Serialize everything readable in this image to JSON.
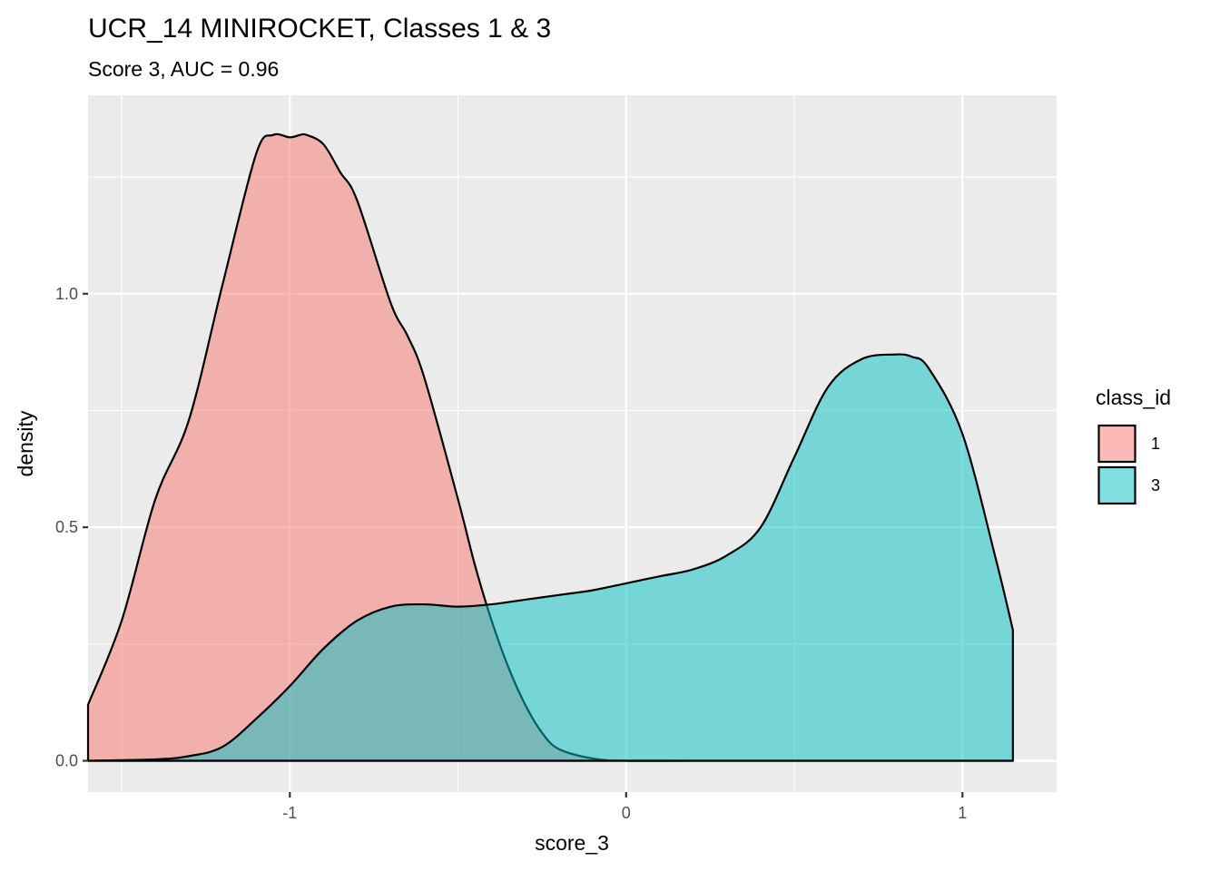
{
  "chart_data": {
    "type": "area",
    "subtype": "density",
    "title": "UCR_14 MINIROCKET, Classes 1 & 3",
    "subtitle": "Score 3, AUC = 0.96",
    "xlabel": "score_3",
    "ylabel": "density",
    "xlim": [
      -1.6,
      1.28
    ],
    "ylim": [
      -0.067,
      1.425
    ],
    "x_ticks": [
      -1,
      0,
      1
    ],
    "x_tick_labels": [
      "-1",
      "0",
      "1"
    ],
    "y_ticks": [
      0.0,
      0.5,
      1.0
    ],
    "y_tick_labels": [
      "0.0",
      "0.5",
      "1.0"
    ],
    "grid": true,
    "legend": {
      "title": "class_id",
      "position": "right"
    },
    "series": [
      {
        "name": "1",
        "color": "#F8766D",
        "fill_opacity": 0.5,
        "x": [
          -1.6,
          -1.5,
          -1.4,
          -1.3,
          -1.2,
          -1.1,
          -1.05,
          -1.0,
          -0.97,
          -0.95,
          -0.9,
          -0.85,
          -0.8,
          -0.7,
          -0.65,
          -0.6,
          -0.5,
          -0.45,
          -0.4,
          -0.35,
          -0.3,
          -0.25,
          -0.2,
          -0.1,
          0.0,
          0.2,
          0.5,
          1.15
        ],
        "y": [
          0.12,
          0.3,
          0.56,
          0.73,
          1.02,
          1.3,
          1.34,
          1.335,
          1.34,
          1.34,
          1.32,
          1.26,
          1.2,
          0.98,
          0.91,
          0.82,
          0.56,
          0.42,
          0.3,
          0.2,
          0.12,
          0.06,
          0.025,
          0.005,
          0.0,
          0.0,
          0.0,
          0.0
        ]
      },
      {
        "name": "3",
        "color": "#00BFC4",
        "fill_opacity": 0.5,
        "x": [
          -1.6,
          -1.4,
          -1.3,
          -1.2,
          -1.1,
          -1.0,
          -0.9,
          -0.8,
          -0.7,
          -0.6,
          -0.5,
          -0.4,
          -0.3,
          -0.2,
          -0.1,
          0.0,
          0.1,
          0.2,
          0.3,
          0.4,
          0.5,
          0.6,
          0.7,
          0.8,
          0.85,
          0.9,
          1.0,
          1.1,
          1.15
        ],
        "y": [
          0.0,
          0.003,
          0.01,
          0.03,
          0.09,
          0.16,
          0.24,
          0.3,
          0.33,
          0.335,
          0.33,
          0.335,
          0.345,
          0.355,
          0.365,
          0.38,
          0.395,
          0.41,
          0.44,
          0.5,
          0.65,
          0.8,
          0.86,
          0.87,
          0.865,
          0.84,
          0.7,
          0.43,
          0.28
        ]
      }
    ]
  }
}
